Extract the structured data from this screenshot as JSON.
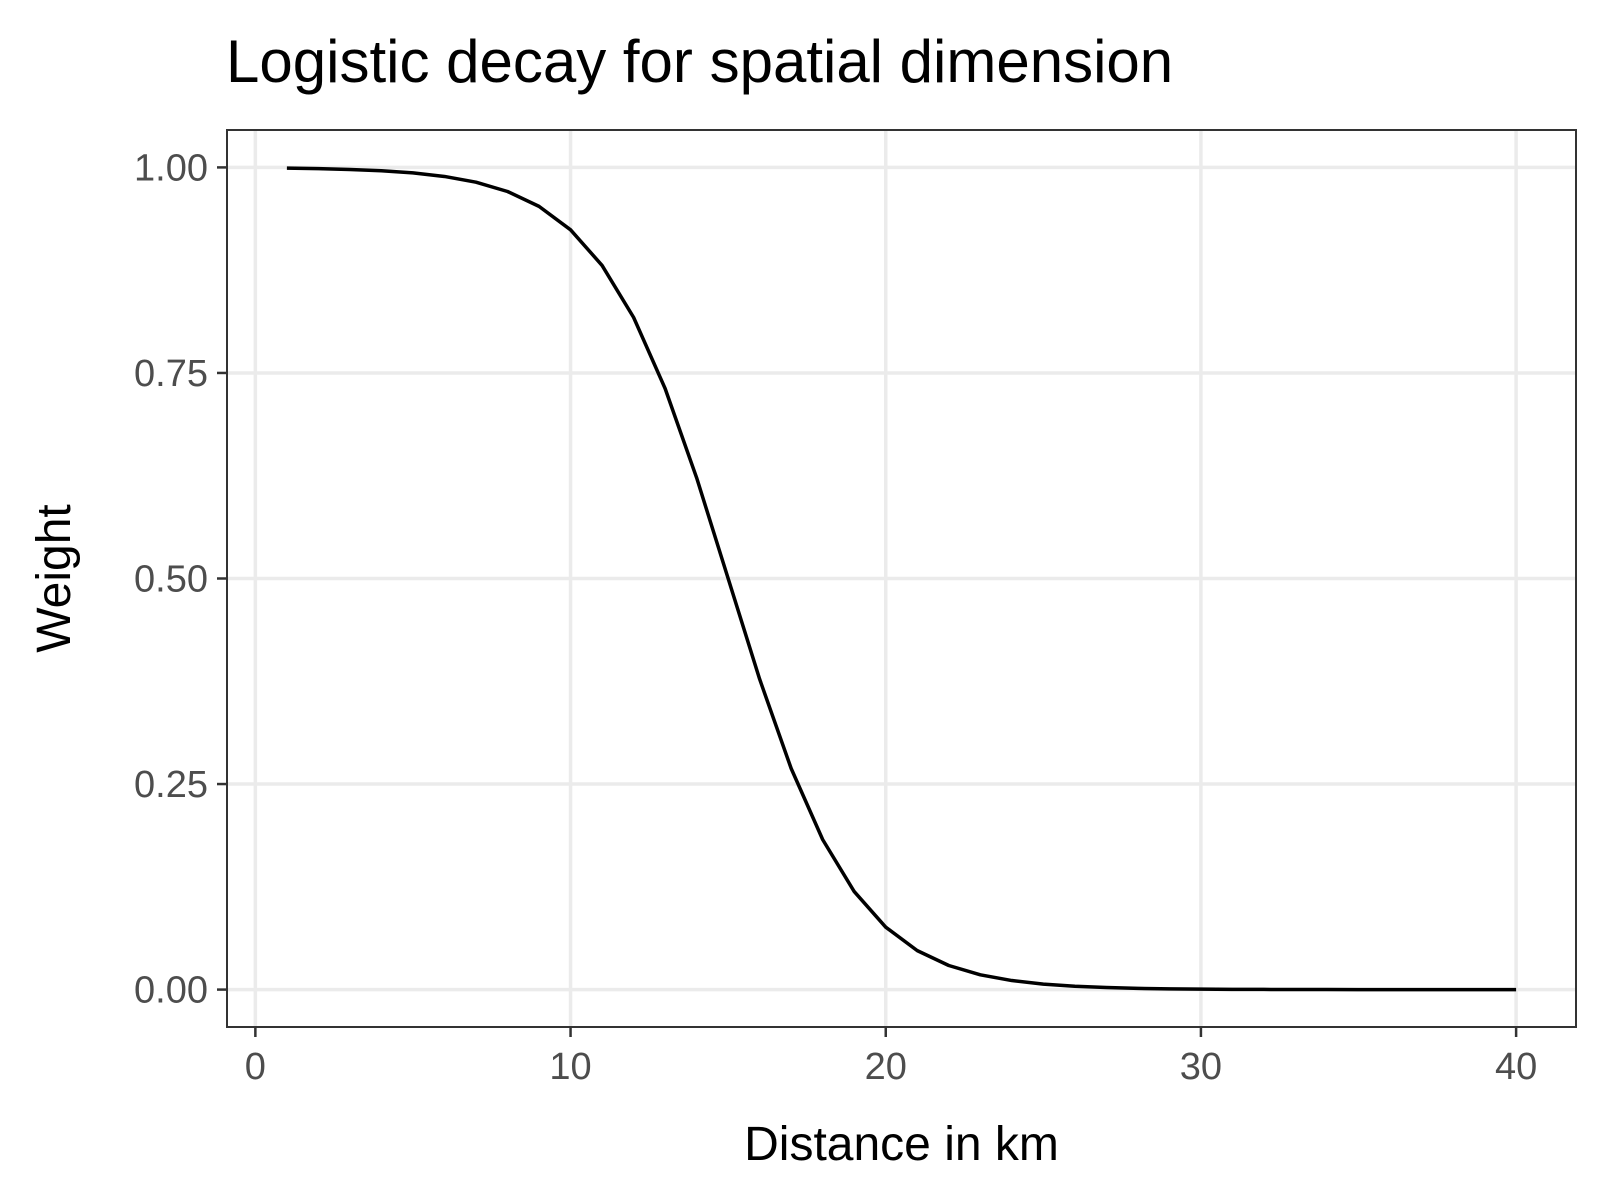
{
  "chart_data": {
    "type": "line",
    "title": "Logistic decay for spatial dimension",
    "xlabel": "Distance in km",
    "ylabel": "Weight",
    "xlim": [
      -0.9,
      41.9
    ],
    "ylim": [
      -0.0455,
      1.0455
    ],
    "x_ticks": [
      0,
      10,
      20,
      30,
      40
    ],
    "x_tick_labels": [
      "0",
      "10",
      "20",
      "30",
      "40"
    ],
    "y_ticks": [
      0,
      0.25,
      0.5,
      0.75,
      1.0
    ],
    "y_tick_labels": [
      "0.00",
      "0.25",
      "0.50",
      "0.75",
      "1.00"
    ],
    "grid": true,
    "legend": "none",
    "line_color": "#000000",
    "series": [
      {
        "x": [
          1,
          2,
          3,
          4,
          5,
          6,
          7,
          8,
          9,
          10,
          11,
          12,
          13,
          14,
          15,
          16,
          17,
          18,
          19,
          20,
          21,
          22,
          23,
          24,
          25,
          26,
          27,
          28,
          29,
          30,
          31,
          32,
          33,
          34,
          35,
          36,
          37,
          38,
          39,
          40
        ],
        "values": [
          0.9991,
          0.9985,
          0.9975,
          0.9959,
          0.9933,
          0.989,
          0.982,
          0.9707,
          0.9526,
          0.9241,
          0.8808,
          0.8176,
          0.7311,
          0.6225,
          0.5,
          0.3775,
          0.2689,
          0.1824,
          0.1192,
          0.0759,
          0.0474,
          0.0293,
          0.018,
          0.011,
          0.0067,
          0.0041,
          0.0025,
          0.0015,
          0.0009,
          0.0006,
          0.0003,
          0.0002,
          0.0001,
          0.0001,
          0.0,
          0.0,
          0.0,
          0.0,
          0.0,
          0.0
        ]
      }
    ]
  }
}
